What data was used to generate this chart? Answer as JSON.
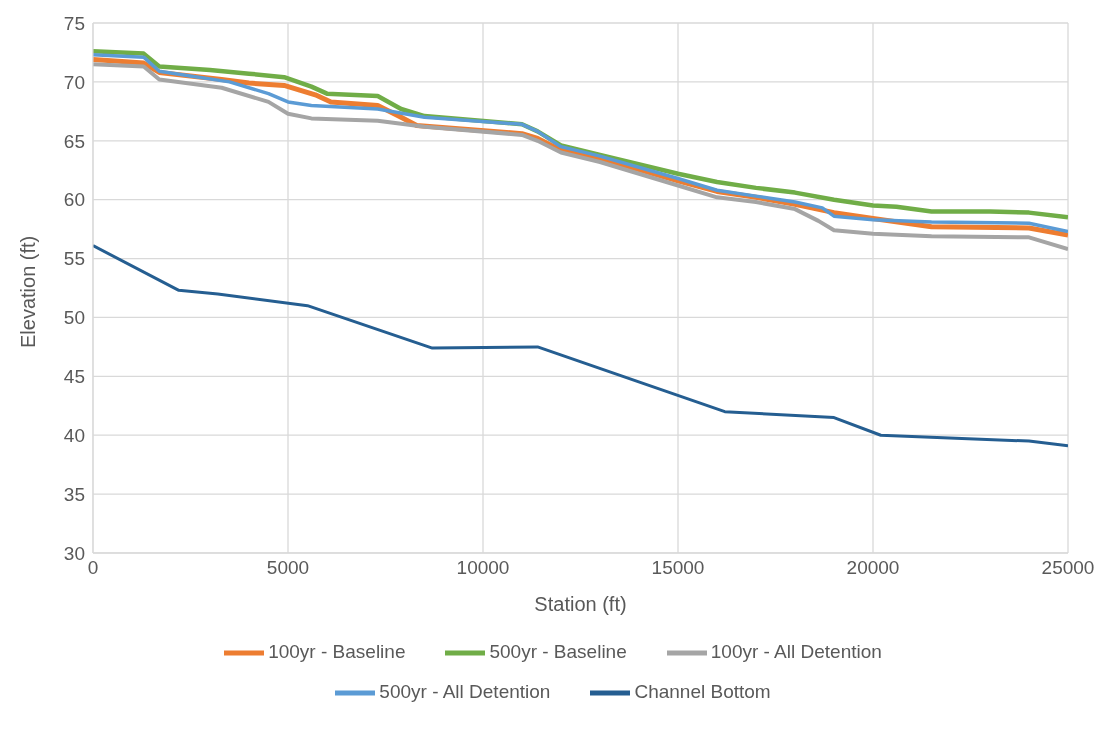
{
  "chart_data": {
    "type": "line",
    "xlabel": "Station (ft)",
    "ylabel": "Elevation (ft)",
    "xlim": [
      0,
      25000
    ],
    "xticks": [
      0,
      5000,
      10000,
      15000,
      20000,
      25000
    ],
    "ylim": [
      30,
      75
    ],
    "yticks": [
      30,
      35,
      40,
      45,
      50,
      55,
      60,
      65,
      70,
      75
    ],
    "grid": true,
    "legend": "bottom",
    "marker": "none",
    "line_style": "solid",
    "series": [
      {
        "name": "100yr - Baseline",
        "color": "#ed7d31",
        "x": [
          0,
          1300,
          1700,
          3300,
          4000,
          4900,
          5700,
          6100,
          7300,
          7900,
          8300,
          11000,
          11400,
          12000,
          13000,
          15000,
          16000,
          17000,
          18000,
          19000,
          20000,
          21500,
          24000,
          25000
        ],
        "values": [
          71.9,
          71.6,
          70.8,
          70.2,
          69.9,
          69.7,
          68.9,
          68.3,
          68.0,
          67.0,
          66.3,
          65.6,
          65.2,
          64.2,
          63.5,
          61.6,
          60.7,
          60.2,
          59.6,
          58.9,
          58.4,
          57.7,
          57.6,
          57.0
        ]
      },
      {
        "name": "500yr - Baseline",
        "color": "#70ad47",
        "x": [
          0,
          1300,
          1700,
          3000,
          4000,
          4900,
          5600,
          6000,
          7300,
          7900,
          8500,
          11000,
          11400,
          12000,
          13000,
          15000,
          16000,
          17000,
          18000,
          19000,
          20000,
          20600,
          21500,
          23000,
          24000,
          25000
        ],
        "values": [
          72.6,
          72.4,
          71.3,
          71.0,
          70.7,
          70.4,
          69.6,
          69.0,
          68.8,
          67.7,
          67.1,
          66.4,
          65.8,
          64.6,
          63.8,
          62.2,
          61.5,
          61.0,
          60.6,
          60.0,
          59.5,
          59.4,
          59.0,
          59.0,
          58.9,
          58.5
        ]
      },
      {
        "name": "100yr - All Detention",
        "color": "#a5a5a5",
        "x": [
          0,
          1300,
          1700,
          3300,
          4500,
          5000,
          5600,
          7300,
          8500,
          11000,
          11400,
          12000,
          13000,
          15000,
          16000,
          17000,
          18000,
          18600,
          19000,
          20000,
          21500,
          24000,
          25000
        ],
        "values": [
          71.5,
          71.3,
          70.2,
          69.5,
          68.3,
          67.3,
          66.9,
          66.7,
          66.2,
          65.5,
          65.0,
          64.0,
          63.2,
          61.2,
          60.2,
          59.8,
          59.2,
          58.2,
          57.4,
          57.1,
          56.9,
          56.8,
          55.8
        ]
      },
      {
        "name": "500yr - All Detention",
        "color": "#5b9bd5",
        "x": [
          0,
          1300,
          1700,
          2500,
          3500,
          4500,
          5000,
          5600,
          7300,
          8500,
          11000,
          11400,
          12000,
          13000,
          15000,
          16000,
          17000,
          18000,
          18700,
          19000,
          20000,
          21500,
          24000,
          25000
        ],
        "values": [
          72.3,
          72.1,
          70.9,
          70.5,
          70.0,
          69.0,
          68.3,
          68.0,
          67.7,
          67.0,
          66.4,
          65.8,
          64.5,
          63.7,
          61.8,
          60.8,
          60.3,
          59.8,
          59.3,
          58.6,
          58.3,
          58.1,
          58.0,
          57.3
        ]
      },
      {
        "name": "Channel Bottom",
        "color": "#255e91",
        "x": [
          0,
          2200,
          3200,
          5500,
          8700,
          11400,
          16200,
          19000,
          20200,
          24000,
          25000
        ],
        "values": [
          56.1,
          52.3,
          52.0,
          51.0,
          47.4,
          47.5,
          42.0,
          41.5,
          40.0,
          39.5,
          39.1
        ]
      }
    ]
  }
}
